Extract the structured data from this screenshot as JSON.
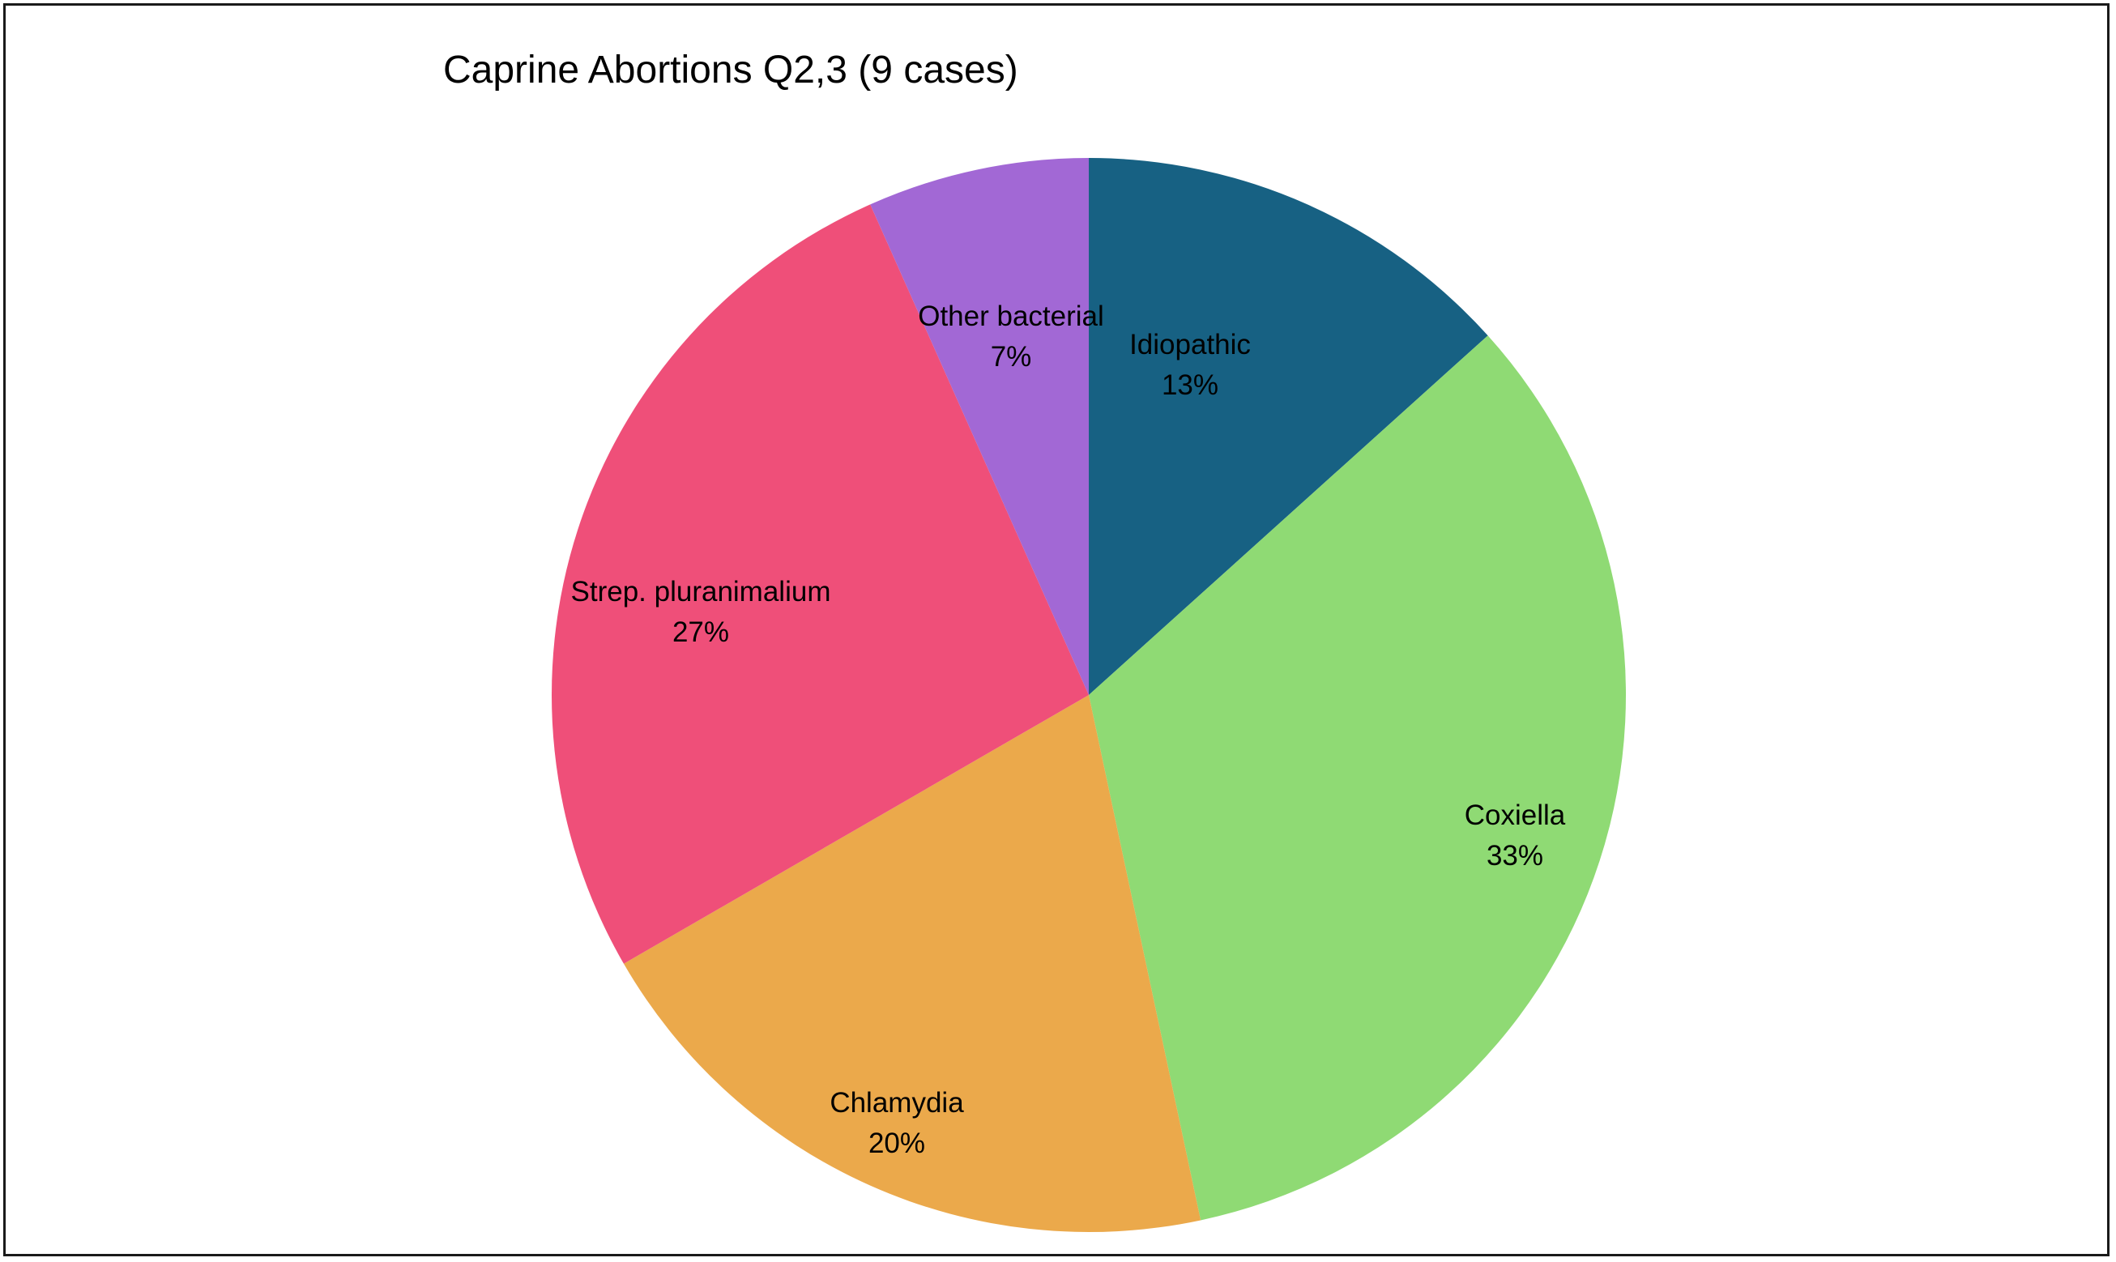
{
  "chart_data": {
    "type": "pie",
    "title": "Caprine Abortions Q2,3 (9 cases)",
    "slices": [
      {
        "label": "Idiopathic",
        "percent_label": "13%",
        "value": 13.33,
        "color": "#176183"
      },
      {
        "label": "Coxiella",
        "percent_label": "33%",
        "value": 33.33,
        "color": "#8FDA74"
      },
      {
        "label": "Chlamydia",
        "percent_label": "20%",
        "value": 20.0,
        "color": "#EBA94B"
      },
      {
        "label": "Strep. pluranimalium",
        "percent_label": "27%",
        "value": 26.67,
        "color": "#EF4F79"
      },
      {
        "label": "Other bacterial",
        "percent_label": "7%",
        "value": 6.67,
        "color": "#A268D5"
      }
    ],
    "start_angle": "12 o'clock",
    "direction": "clockwise",
    "legend": "none",
    "data_labels": "category name and percentage"
  }
}
